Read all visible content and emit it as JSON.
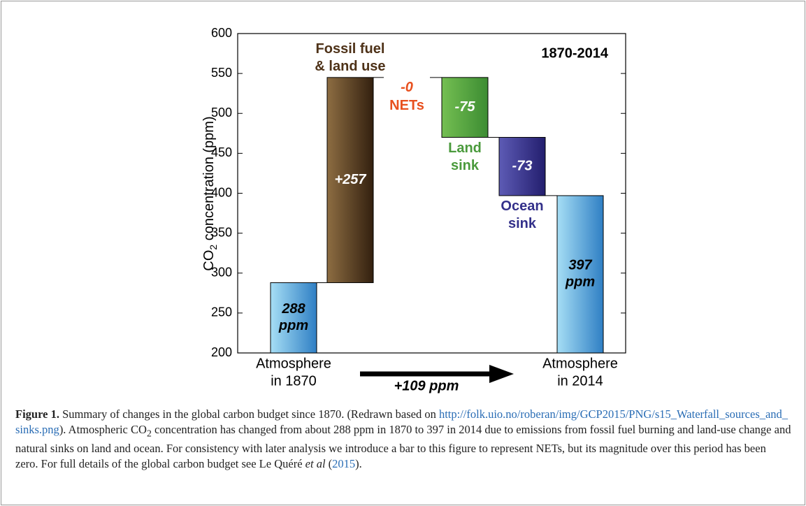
{
  "chart_data": {
    "type": "waterfall",
    "annotation": "1870-2014",
    "arrow_label": "+109 ppm",
    "y_label": {
      "main": "CO",
      "sub": "2",
      "rest": " concentration (ppm)"
    },
    "categories": [
      [
        "Atmosphere",
        "in 1870"
      ],
      [
        "Fossil fuel",
        "& land use"
      ],
      [
        "NETs"
      ],
      [
        "Land",
        "sink"
      ],
      [
        "Ocean",
        "sink"
      ],
      [
        "Atmosphere",
        "in 2014"
      ]
    ],
    "category_colors": [
      "#000000",
      "#4e3218",
      "#e8501e",
      "#4a9a3c",
      "#33308a",
      "#000000"
    ],
    "values": [
      288,
      257,
      0,
      -75,
      -73,
      397
    ],
    "value_labels": [
      [
        "288",
        "ppm"
      ],
      [
        "+257"
      ],
      [
        "-0"
      ],
      [
        "-75"
      ],
      [
        "-73"
      ],
      [
        "397",
        "ppm"
      ]
    ],
    "value_label_colors": [
      "#000000",
      "#ffffff",
      "#e8501e",
      "#ffffff",
      "#ffffff",
      "#000000"
    ],
    "is_total": [
      true,
      false,
      false,
      false,
      false,
      true
    ],
    "colors": [
      [
        "#a6def5",
        "#2f7fc4"
      ],
      [
        "#8d6d42",
        "#33200f"
      ],
      [
        "#e8501e",
        "#e8501e"
      ],
      [
        "#74bf52",
        "#3c8c32"
      ],
      [
        "#5d5bb5",
        "#231e6e"
      ],
      [
        "#a6def5",
        "#2f7fc4"
      ]
    ],
    "ylim": [
      200,
      600
    ],
    "yticks": [
      200,
      250,
      300,
      350,
      400,
      450,
      500,
      550,
      600
    ]
  },
  "caption": {
    "label": "Figure 1.",
    "text1": " Summary of changes in the global carbon budget since 1870. (Redrawn based on ",
    "link1": "http://folk.uio.no/roberan/img/GCP2015/PNG/s15_Waterfall_sources_and_sinks.png",
    "text2": "). Atmospheric CO",
    "sub": "2",
    "text3": " concentration has changed from about 288 ppm in 1870 to 397 in 2014 due to emissions from fossil fuel burning and land-use change and natural sinks on land and ocean. For consistency with later analysis we introduce a bar to this figure to represent NETs, but its magnitude over this period has been zero. For full details of the global carbon budget see Le Quéré ",
    "italic": "et al",
    "text4": " (",
    "link2": "2015",
    "text5": ")."
  }
}
